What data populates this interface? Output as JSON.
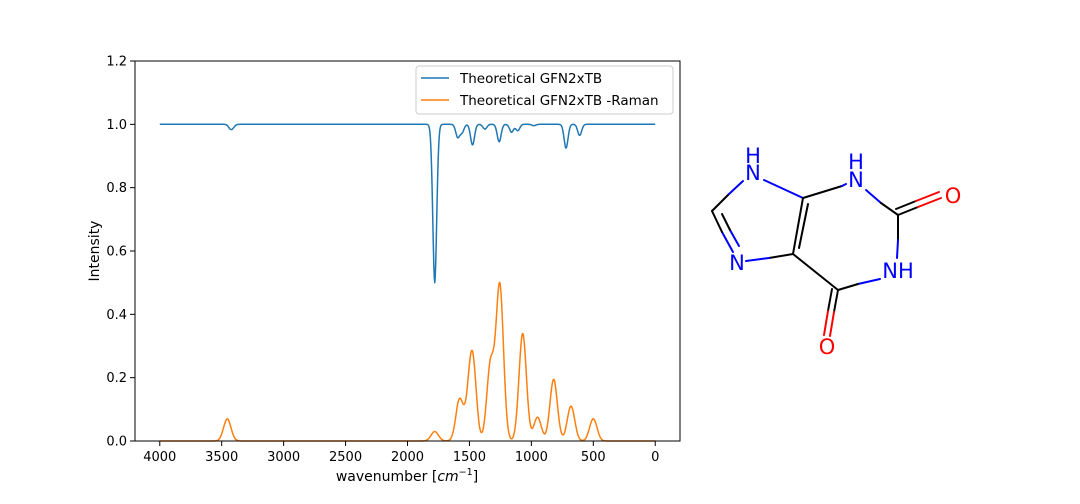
{
  "chart_data": {
    "type": "line",
    "xlabel_prefix": "wavenumber [",
    "xlabel_unit": "cm",
    "xlabel_exp": "−1",
    "xlabel_suffix": "]",
    "ylabel": "Intensity",
    "xlim": [
      4200,
      -200
    ],
    "ylim": [
      0.0,
      1.2
    ],
    "xticks": [
      4000,
      3500,
      3000,
      2500,
      2000,
      1500,
      1000,
      500,
      0
    ],
    "yticks": [
      "0.0",
      "0.2",
      "0.4",
      "0.6",
      "0.8",
      "1.0",
      "1.2"
    ],
    "grid": false,
    "legend_position": "top-right",
    "series": [
      {
        "name": "Theoretical GFN2xTB",
        "color": "#1f77b4",
        "baseline": 1.0,
        "peak_width": 16,
        "peaks": [
          [
            3430,
            -0.012
          ],
          [
            3410,
            -0.008
          ],
          [
            1780,
            -0.5
          ],
          [
            1595,
            -0.04
          ],
          [
            1560,
            -0.025
          ],
          [
            1475,
            -0.065
          ],
          [
            1375,
            -0.015
          ],
          [
            1260,
            -0.055
          ],
          [
            1160,
            -0.025
          ],
          [
            1110,
            -0.02
          ],
          [
            980,
            -0.004
          ],
          [
            720,
            -0.075
          ],
          [
            610,
            -0.035
          ]
        ]
      },
      {
        "name": "Theoretical GFN2xTB -Raman",
        "color": "#ff7f0e",
        "baseline": 0.0,
        "peak_width": 30,
        "peaks": [
          [
            3455,
            0.07
          ],
          [
            1780,
            0.03
          ],
          [
            1580,
            0.13
          ],
          [
            1510,
            0.065
          ],
          [
            1475,
            0.25
          ],
          [
            1330,
            0.24
          ],
          [
            1255,
            0.49
          ],
          [
            1070,
            0.34
          ],
          [
            950,
            0.075
          ],
          [
            820,
            0.195
          ],
          [
            680,
            0.11
          ],
          [
            500,
            0.07
          ]
        ]
      }
    ]
  },
  "molecule": {
    "atoms": {
      "n9_h": "H",
      "n9": "N",
      "n1_h": "H",
      "n1": "N",
      "o2": "O",
      "n3h": "NH",
      "n7": "N",
      "o6": "O"
    },
    "colors": {
      "bond": "#000000",
      "nitrogen": "#0000ff",
      "oxygen": "#ff0000"
    }
  }
}
